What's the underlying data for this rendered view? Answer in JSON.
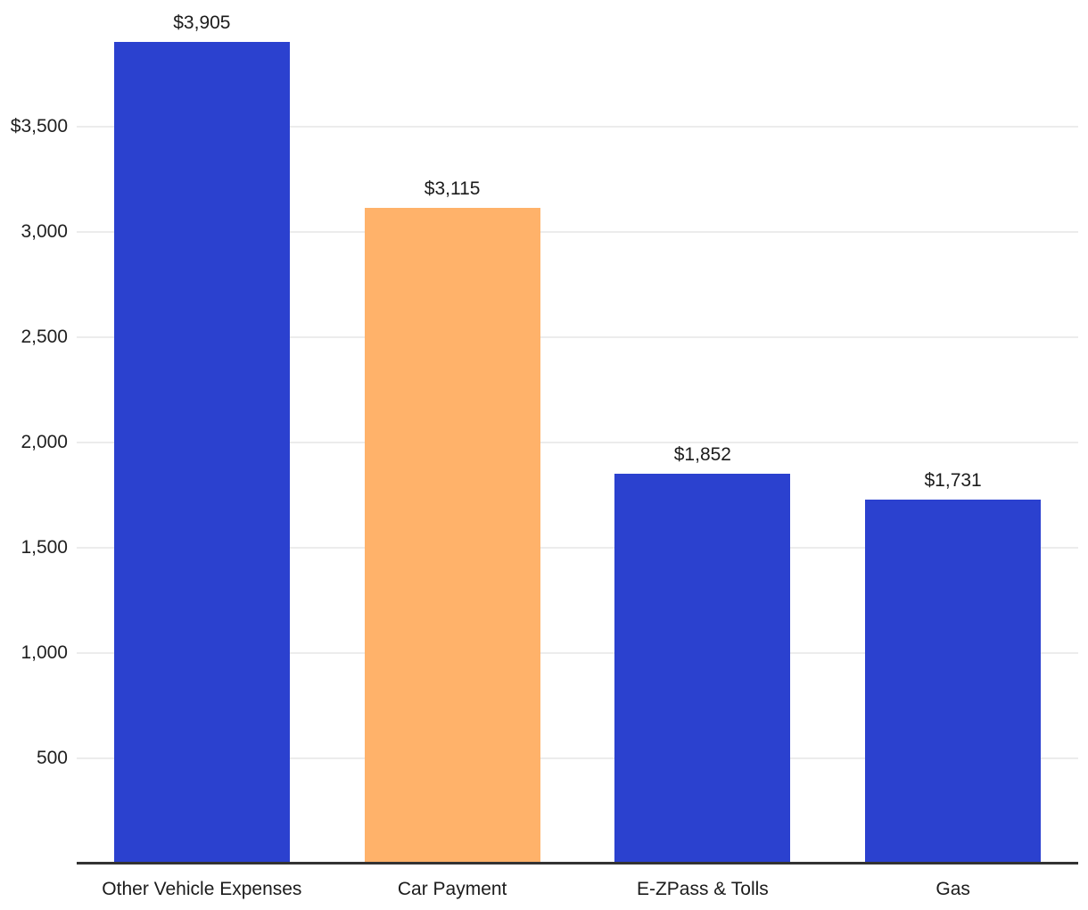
{
  "chart_data": {
    "type": "bar",
    "categories": [
      "Other Vehicle Expenses",
      "Car Payment",
      "E-ZPass & Tolls",
      "Gas"
    ],
    "values": [
      3905,
      3115,
      1852,
      1731
    ],
    "bar_value_labels": [
      "$3,905",
      "$3,115",
      "$1,852",
      "$1,731"
    ],
    "bar_colors": [
      "#2b41cf",
      "#ffb26a",
      "#2b41cf",
      "#2b41cf"
    ],
    "y_axis": {
      "range": [
        0,
        4104
      ],
      "ticks": [
        {
          "value": 500,
          "label": "500"
        },
        {
          "value": 1000,
          "label": "1,000"
        },
        {
          "value": 1500,
          "label": "1,500"
        },
        {
          "value": 2000,
          "label": "2,000"
        },
        {
          "value": 2500,
          "label": "2,500"
        },
        {
          "value": 3000,
          "label": "3,000"
        },
        {
          "value": 3500,
          "label": "$3,500"
        }
      ]
    },
    "grid": true,
    "legend": false,
    "colors": {
      "grid": "#ececec",
      "axis_line": "#333333",
      "tick_text": "#1f1f1f",
      "label_text": "#1c1c1c"
    }
  }
}
